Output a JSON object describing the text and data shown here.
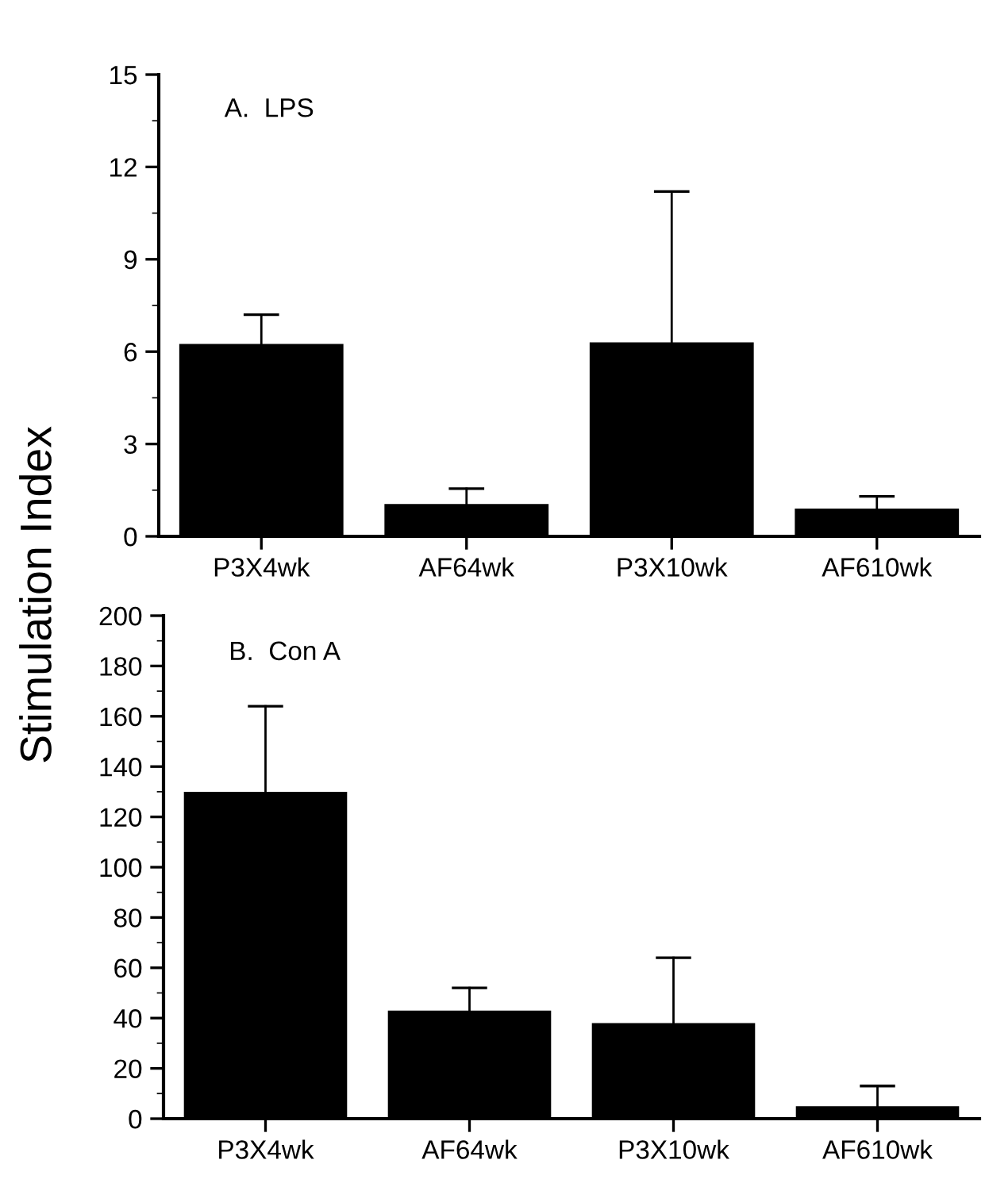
{
  "chart_data": [
    {
      "type": "bar",
      "title": "A.  LPS",
      "ylabel": "Stimulation Index",
      "categories": [
        "P3X4wk",
        "AF64wk",
        "P3X10wk",
        "AF610wk"
      ],
      "series": [
        {
          "color": "#000000",
          "values": [
            6.25,
            1.05,
            6.3,
            0.9
          ],
          "errors": [
            [
              6.25,
              7.2
            ],
            [
              1.05,
              1.55
            ],
            [
              6.3,
              11.2
            ],
            [
              0.9,
              1.3
            ]
          ]
        }
      ],
      "ylim": [
        0,
        15
      ],
      "yticks": [
        0,
        3,
        6,
        9,
        12,
        15
      ],
      "grid": false,
      "legend": false
    },
    {
      "type": "bar",
      "title": "B.  Con A",
      "categories": [
        "P3X4wk",
        "AF64wk",
        "P3X10wk",
        "AF610wk"
      ],
      "series": [
        {
          "color": "#000000",
          "values": [
            130,
            43,
            38,
            5
          ],
          "errors": [
            [
              130,
              164
            ],
            [
              43,
              52
            ],
            [
              38,
              64
            ],
            [
              5,
              13
            ]
          ]
        }
      ],
      "ylim": [
        0,
        200
      ],
      "yticks": [
        0,
        20,
        40,
        60,
        80,
        100,
        120,
        140,
        160,
        180,
        200
      ],
      "grid": false,
      "legend": false
    }
  ]
}
